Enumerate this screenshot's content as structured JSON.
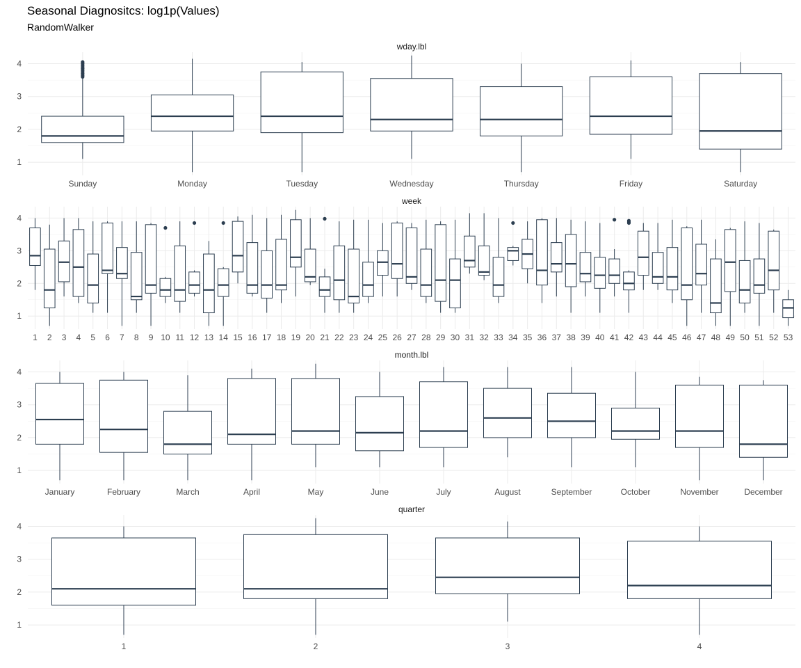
{
  "title": "Seasonal Diagnositcs: log1p(Values)",
  "subtitle": "RandomWalker",
  "colors": {
    "box": "#2c3e50",
    "grid": "#ebebeb",
    "text": "#4d4d4d",
    "background": "#ffffff"
  },
  "chart_data": [
    {
      "type": "boxplot",
      "facet": "wday.lbl",
      "y_ticks": [
        1,
        2,
        3,
        4
      ],
      "ylim": [
        0.6,
        4.35
      ],
      "grid": true,
      "categories": [
        "Sunday",
        "Monday",
        "Tuesday",
        "Wednesday",
        "Thursday",
        "Friday",
        "Saturday"
      ],
      "boxes": [
        {
          "low": 1.1,
          "q1": 1.6,
          "median": 1.8,
          "q3": 2.4,
          "high": 3.55,
          "outliers": [
            3.6,
            3.65,
            3.7,
            3.75,
            3.8,
            3.85,
            3.9,
            3.95,
            4.0,
            4.05
          ]
        },
        {
          "low": 0.7,
          "q1": 1.95,
          "median": 2.4,
          "q3": 3.05,
          "high": 4.15,
          "outliers": []
        },
        {
          "low": 0.7,
          "q1": 1.9,
          "median": 2.4,
          "q3": 3.75,
          "high": 4.05,
          "outliers": []
        },
        {
          "low": 1.1,
          "q1": 1.95,
          "median": 2.3,
          "q3": 3.55,
          "high": 4.25,
          "outliers": []
        },
        {
          "low": 0.7,
          "q1": 1.8,
          "median": 2.3,
          "q3": 3.3,
          "high": 4.0,
          "outliers": []
        },
        {
          "low": 1.1,
          "q1": 1.85,
          "median": 2.4,
          "q3": 3.6,
          "high": 4.1,
          "outliers": []
        },
        {
          "low": 0.7,
          "q1": 1.4,
          "median": 1.95,
          "q3": 3.7,
          "high": 4.05,
          "outliers": []
        }
      ]
    },
    {
      "type": "boxplot",
      "facet": "week",
      "y_ticks": [
        1,
        2,
        3,
        4
      ],
      "ylim": [
        0.6,
        4.35
      ],
      "grid": true,
      "categories": [
        "1",
        "2",
        "3",
        "4",
        "5",
        "6",
        "7",
        "8",
        "9",
        "10",
        "11",
        "12",
        "13",
        "14",
        "15",
        "16",
        "17",
        "18",
        "19",
        "20",
        "21",
        "22",
        "23",
        "24",
        "25",
        "26",
        "27",
        "28",
        "29",
        "30",
        "31",
        "32",
        "33",
        "34",
        "35",
        "36",
        "37",
        "38",
        "39",
        "40",
        "41",
        "42",
        "43",
        "44",
        "45",
        "46",
        "47",
        "48",
        "49",
        "50",
        "51",
        "52",
        "53"
      ],
      "boxes": [
        {
          "low": 1.8,
          "q1": 2.55,
          "median": 2.85,
          "q3": 3.7,
          "high": 4.0,
          "outliers": []
        },
        {
          "low": 0.7,
          "q1": 1.25,
          "median": 1.8,
          "q3": 3.05,
          "high": 3.8,
          "outliers": []
        },
        {
          "low": 1.6,
          "q1": 2.05,
          "median": 2.65,
          "q3": 3.3,
          "high": 4.0,
          "outliers": []
        },
        {
          "low": 1.4,
          "q1": 1.6,
          "median": 2.5,
          "q3": 3.65,
          "high": 4.0,
          "outliers": []
        },
        {
          "low": 1.1,
          "q1": 1.4,
          "median": 1.95,
          "q3": 2.9,
          "high": 3.9,
          "outliers": []
        },
        {
          "low": 1.1,
          "q1": 2.3,
          "median": 2.4,
          "q3": 3.85,
          "high": 3.9,
          "outliers": []
        },
        {
          "low": 0.7,
          "q1": 2.15,
          "median": 2.3,
          "q3": 3.1,
          "high": 3.9,
          "outliers": []
        },
        {
          "low": 1.1,
          "q1": 1.5,
          "median": 1.6,
          "q3": 2.95,
          "high": 3.9,
          "outliers": []
        },
        {
          "low": 0.7,
          "q1": 1.7,
          "median": 1.95,
          "q3": 3.8,
          "high": 3.85,
          "outliers": []
        },
        {
          "low": 1.4,
          "q1": 1.6,
          "median": 1.8,
          "q3": 2.15,
          "high": 2.2,
          "outliers": [
            3.7
          ]
        },
        {
          "low": 1.1,
          "q1": 1.45,
          "median": 1.8,
          "q3": 3.15,
          "high": 3.9,
          "outliers": []
        },
        {
          "low": 1.6,
          "q1": 1.7,
          "median": 1.95,
          "q3": 2.35,
          "high": 2.4,
          "outliers": [
            3.85
          ]
        },
        {
          "low": 0.7,
          "q1": 1.1,
          "median": 1.8,
          "q3": 2.9,
          "high": 3.3,
          "outliers": []
        },
        {
          "low": 0.7,
          "q1": 1.6,
          "median": 1.95,
          "q3": 2.45,
          "high": 2.5,
          "outliers": [
            3.85
          ]
        },
        {
          "low": 2.0,
          "q1": 2.35,
          "median": 2.85,
          "q3": 3.9,
          "high": 4.05,
          "outliers": []
        },
        {
          "low": 1.6,
          "q1": 1.7,
          "median": 1.95,
          "q3": 3.25,
          "high": 4.1,
          "outliers": []
        },
        {
          "low": 1.1,
          "q1": 1.55,
          "median": 1.95,
          "q3": 3.0,
          "high": 4.0,
          "outliers": []
        },
        {
          "low": 1.4,
          "q1": 1.8,
          "median": 1.95,
          "q3": 3.35,
          "high": 4.1,
          "outliers": []
        },
        {
          "low": 1.6,
          "q1": 2.5,
          "median": 2.8,
          "q3": 3.95,
          "high": 4.25,
          "outliers": []
        },
        {
          "low": 1.95,
          "q1": 2.05,
          "median": 2.2,
          "q3": 3.05,
          "high": 4.0,
          "outliers": []
        },
        {
          "low": 1.1,
          "q1": 1.6,
          "median": 1.8,
          "q3": 2.2,
          "high": 2.45,
          "outliers": [
            3.98
          ]
        },
        {
          "low": 1.1,
          "q1": 1.5,
          "median": 2.1,
          "q3": 3.15,
          "high": 3.9,
          "outliers": []
        },
        {
          "low": 1.1,
          "q1": 1.4,
          "median": 1.6,
          "q3": 3.05,
          "high": 3.95,
          "outliers": []
        },
        {
          "low": 1.4,
          "q1": 1.6,
          "median": 1.95,
          "q3": 2.65,
          "high": 3.95,
          "outliers": []
        },
        {
          "low": 1.6,
          "q1": 2.25,
          "median": 2.65,
          "q3": 3.0,
          "high": 3.85,
          "outliers": []
        },
        {
          "low": 1.6,
          "q1": 2.15,
          "median": 2.6,
          "q3": 3.85,
          "high": 3.9,
          "outliers": []
        },
        {
          "low": 1.8,
          "q1": 2.0,
          "median": 2.2,
          "q3": 3.7,
          "high": 3.85,
          "outliers": []
        },
        {
          "low": 1.4,
          "q1": 1.6,
          "median": 1.95,
          "q3": 3.05,
          "high": 3.95,
          "outliers": []
        },
        {
          "low": 1.1,
          "q1": 1.45,
          "median": 2.1,
          "q3": 3.8,
          "high": 3.9,
          "outliers": []
        },
        {
          "low": 1.1,
          "q1": 1.25,
          "median": 2.1,
          "q3": 2.75,
          "high": 3.95,
          "outliers": []
        },
        {
          "low": 2.3,
          "q1": 2.5,
          "median": 2.7,
          "q3": 3.45,
          "high": 4.15,
          "outliers": []
        },
        {
          "low": 2.1,
          "q1": 2.25,
          "median": 2.35,
          "q3": 3.15,
          "high": 4.15,
          "outliers": []
        },
        {
          "low": 1.4,
          "q1": 1.6,
          "median": 1.95,
          "q3": 2.8,
          "high": 4.0,
          "outliers": []
        },
        {
          "low": 2.55,
          "q1": 2.7,
          "median": 3.0,
          "q3": 3.1,
          "high": 3.15,
          "outliers": [
            3.85
          ]
        },
        {
          "low": 2.0,
          "q1": 2.45,
          "median": 2.9,
          "q3": 3.35,
          "high": 3.9,
          "outliers": []
        },
        {
          "low": 1.4,
          "q1": 1.95,
          "median": 2.4,
          "q3": 3.95,
          "high": 4.0,
          "outliers": []
        },
        {
          "low": 1.6,
          "q1": 2.35,
          "median": 2.6,
          "q3": 3.25,
          "high": 4.0,
          "outliers": []
        },
        {
          "low": 1.1,
          "q1": 1.9,
          "median": 2.6,
          "q3": 3.5,
          "high": 3.95,
          "outliers": []
        },
        {
          "low": 1.6,
          "q1": 2.05,
          "median": 2.3,
          "q3": 2.95,
          "high": 3.9,
          "outliers": []
        },
        {
          "low": 1.1,
          "q1": 1.85,
          "median": 2.25,
          "q3": 2.8,
          "high": 3.85,
          "outliers": []
        },
        {
          "low": 1.6,
          "q1": 2.0,
          "median": 2.25,
          "q3": 2.75,
          "high": 3.05,
          "outliers": [
            3.95
          ]
        },
        {
          "low": 1.1,
          "q1": 1.8,
          "median": 2.0,
          "q3": 2.35,
          "high": 2.4,
          "outliers": [
            3.85,
            3.88,
            3.92
          ]
        },
        {
          "low": 1.8,
          "q1": 2.25,
          "median": 2.8,
          "q3": 3.6,
          "high": 3.85,
          "outliers": []
        },
        {
          "low": 1.8,
          "q1": 2.0,
          "median": 2.2,
          "q3": 2.95,
          "high": 3.85,
          "outliers": []
        },
        {
          "low": 1.4,
          "q1": 1.8,
          "median": 2.2,
          "q3": 3.1,
          "high": 3.95,
          "outliers": []
        },
        {
          "low": 0.7,
          "q1": 1.5,
          "median": 1.95,
          "q3": 3.7,
          "high": 3.75,
          "outliers": []
        },
        {
          "low": 1.1,
          "q1": 1.95,
          "median": 2.3,
          "q3": 3.2,
          "high": 3.95,
          "outliers": []
        },
        {
          "low": 0.7,
          "q1": 1.1,
          "median": 1.4,
          "q3": 2.75,
          "high": 3.35,
          "outliers": []
        },
        {
          "low": 0.7,
          "q1": 1.75,
          "median": 2.65,
          "q3": 3.65,
          "high": 3.7,
          "outliers": []
        },
        {
          "low": 1.1,
          "q1": 1.4,
          "median": 1.8,
          "q3": 2.7,
          "high": 3.9,
          "outliers": []
        },
        {
          "low": 0.7,
          "q1": 1.7,
          "median": 1.95,
          "q3": 2.75,
          "high": 3.85,
          "outliers": []
        },
        {
          "low": 1.1,
          "q1": 1.8,
          "median": 2.4,
          "q3": 3.6,
          "high": 3.65,
          "outliers": []
        },
        {
          "low": 0.7,
          "q1": 0.95,
          "median": 1.25,
          "q3": 1.5,
          "high": 1.8,
          "outliers": []
        }
      ]
    },
    {
      "type": "boxplot",
      "facet": "month.lbl",
      "y_ticks": [
        1,
        2,
        3,
        4
      ],
      "ylim": [
        0.6,
        4.35
      ],
      "grid": true,
      "categories": [
        "January",
        "February",
        "March",
        "April",
        "May",
        "June",
        "July",
        "August",
        "September",
        "October",
        "November",
        "December"
      ],
      "boxes": [
        {
          "low": 0.7,
          "q1": 1.8,
          "median": 2.55,
          "q3": 3.65,
          "high": 4.0,
          "outliers": []
        },
        {
          "low": 0.7,
          "q1": 1.55,
          "median": 2.25,
          "q3": 3.75,
          "high": 4.0,
          "outliers": []
        },
        {
          "low": 0.7,
          "q1": 1.5,
          "median": 1.8,
          "q3": 2.8,
          "high": 3.9,
          "outliers": []
        },
        {
          "low": 0.7,
          "q1": 1.8,
          "median": 2.1,
          "q3": 3.8,
          "high": 4.1,
          "outliers": []
        },
        {
          "low": 1.1,
          "q1": 1.8,
          "median": 2.2,
          "q3": 3.8,
          "high": 4.25,
          "outliers": []
        },
        {
          "low": 1.1,
          "q1": 1.6,
          "median": 2.15,
          "q3": 3.25,
          "high": 4.0,
          "outliers": []
        },
        {
          "low": 1.1,
          "q1": 1.7,
          "median": 2.2,
          "q3": 3.7,
          "high": 4.15,
          "outliers": []
        },
        {
          "low": 1.4,
          "q1": 2.0,
          "median": 2.6,
          "q3": 3.5,
          "high": 4.15,
          "outliers": []
        },
        {
          "low": 1.1,
          "q1": 2.0,
          "median": 2.5,
          "q3": 3.35,
          "high": 4.15,
          "outliers": []
        },
        {
          "low": 1.1,
          "q1": 1.95,
          "median": 2.2,
          "q3": 2.9,
          "high": 4.0,
          "outliers": []
        },
        {
          "low": 0.7,
          "q1": 1.7,
          "median": 2.2,
          "q3": 3.6,
          "high": 3.85,
          "outliers": []
        },
        {
          "low": 0.7,
          "q1": 1.4,
          "median": 1.8,
          "q3": 3.6,
          "high": 3.75,
          "outliers": []
        }
      ]
    },
    {
      "type": "boxplot",
      "facet": "quarter",
      "y_ticks": [
        1,
        2,
        3,
        4
      ],
      "ylim": [
        0.6,
        4.35
      ],
      "grid": true,
      "categories": [
        "1",
        "2",
        "3",
        "4"
      ],
      "boxes": [
        {
          "low": 0.7,
          "q1": 1.6,
          "median": 2.1,
          "q3": 3.65,
          "high": 4.0,
          "outliers": []
        },
        {
          "low": 0.7,
          "q1": 1.8,
          "median": 2.1,
          "q3": 3.75,
          "high": 4.25,
          "outliers": []
        },
        {
          "low": 1.1,
          "q1": 1.95,
          "median": 2.45,
          "q3": 3.65,
          "high": 4.15,
          "outliers": []
        },
        {
          "low": 0.7,
          "q1": 1.8,
          "median": 2.2,
          "q3": 3.55,
          "high": 4.0,
          "outliers": []
        }
      ]
    }
  ]
}
